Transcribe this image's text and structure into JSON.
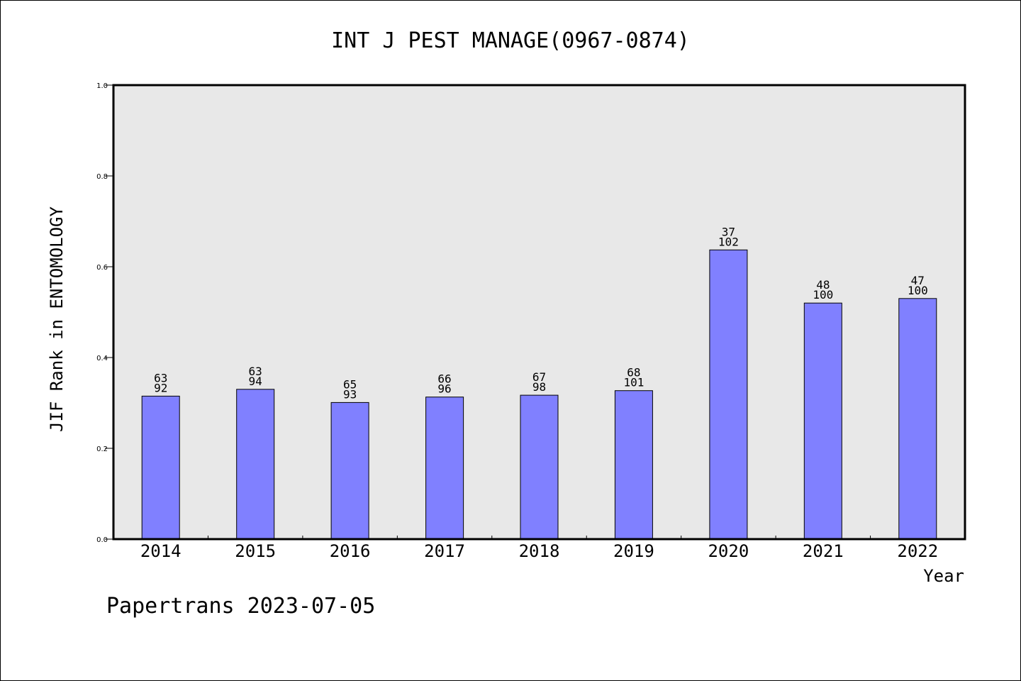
{
  "chart_data": {
    "type": "bar",
    "title": "INT J PEST MANAGE(0967-0874)",
    "xlabel": "Year",
    "ylabel": "JIF Rank in ENTOMOLOGY",
    "ylim": [
      0,
      1.0
    ],
    "yticks": [
      "0.0",
      "0.2",
      "0.4",
      "0.6",
      "0.8",
      "1.0"
    ],
    "categories": [
      "2014",
      "2015",
      "2016",
      "2017",
      "2018",
      "2019",
      "2020",
      "2021",
      "2022"
    ],
    "values": [
      0.315,
      0.33,
      0.301,
      0.313,
      0.317,
      0.327,
      0.637,
      0.52,
      0.53
    ],
    "rank": [
      "63",
      "63",
      "65",
      "66",
      "67",
      "68",
      "37",
      "48",
      "47"
    ],
    "total": [
      "92",
      "94",
      "93",
      "96",
      "98",
      "101",
      "102",
      "100",
      "100"
    ],
    "bar_color": "#8080ff",
    "plot_background": "#e8e8e8",
    "grid": false
  },
  "footer": "Papertrans 2023-07-05"
}
